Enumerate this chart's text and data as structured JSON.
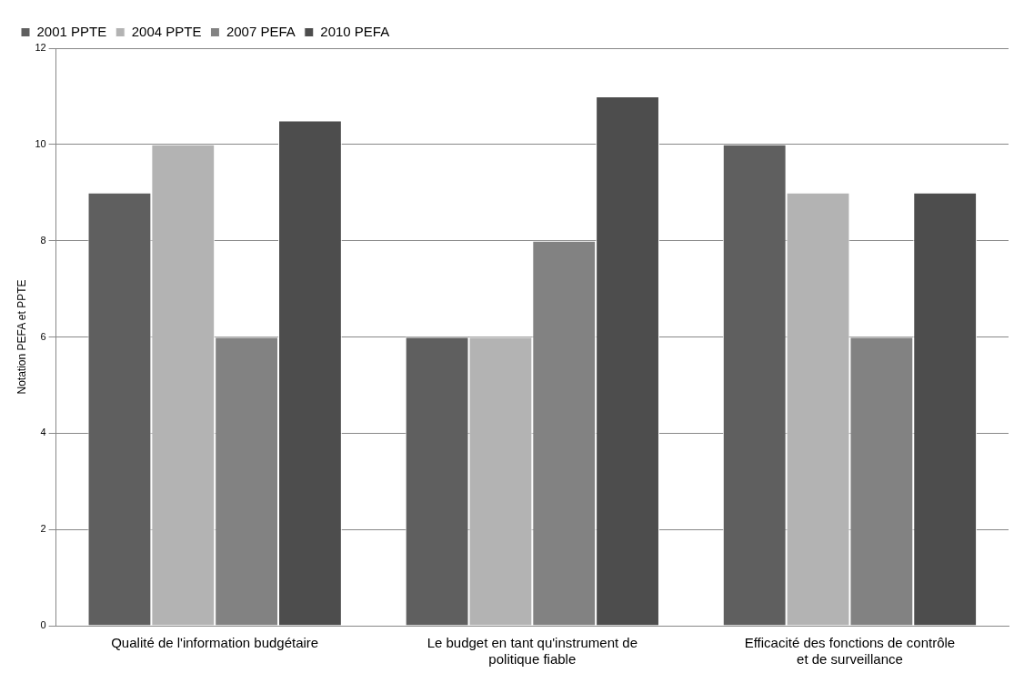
{
  "chart_data": {
    "type": "bar",
    "ylabel": "Notation PEFA et PPTE",
    "categories": [
      "Qualité de l'information budgétaire",
      "Le budget en tant qu'instrument de politique fiable",
      "Efficacité des fonctions de contrôle et de surveillance"
    ],
    "series": [
      {
        "name": "2001 PPTE",
        "color": "#5f5f5f",
        "values": [
          9,
          6,
          10
        ]
      },
      {
        "name": "2004 PPTE",
        "color": "#b3b3b3",
        "values": [
          10,
          6,
          9
        ]
      },
      {
        "name": "2007 PEFA",
        "color": "#828282",
        "values": [
          6,
          8,
          6
        ]
      },
      {
        "name": "2010 PEFA",
        "color": "#4d4d4d",
        "values": [
          10.5,
          11,
          9
        ]
      }
    ],
    "ylim": [
      0,
      12
    ],
    "yticks": [
      0,
      2,
      4,
      6,
      8,
      10,
      12
    ],
    "grid": "y",
    "legend": "top left"
  }
}
